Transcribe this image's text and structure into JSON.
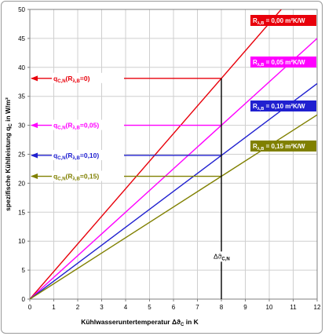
{
  "chart_data": {
    "type": "line",
    "xlabel": "Kühlwasseruntertemperatur  Δϑ",
    "xlabel_sub": "C",
    "xlabel_unit": " in K",
    "ylabel": "spezifische Kühlleistung q",
    "ylabel_sub": "C",
    "ylabel_unit": " in W/m²",
    "xlim": [
      0,
      12
    ],
    "ylim": [
      0,
      50
    ],
    "x_ticks": [
      "0",
      "1",
      "2",
      "3",
      "4",
      "5",
      "6",
      "7",
      "8",
      "9",
      "10",
      "11",
      "12"
    ],
    "y_ticks": [
      "0",
      "5",
      "10",
      "15",
      "20",
      "25",
      "30",
      "35",
      "40",
      "45",
      "50"
    ],
    "grid": true,
    "series": [
      {
        "name": "R",
        "sub": "λ,B",
        "val": " = 0,00 m²K/W",
        "color": "#e8000b",
        "slope": 4.7625,
        "x": [
          0,
          10.5
        ],
        "y": [
          0,
          50.0
        ]
      },
      {
        "name": "R",
        "sub": "λ,B",
        "val": " = 0,05 m²K/W",
        "color": "#ff00ff",
        "slope": 3.75,
        "x": [
          0,
          12
        ],
        "y": [
          0,
          45.0
        ]
      },
      {
        "name": "R",
        "sub": "λ,B",
        "val": " = 0,10 m²K/W",
        "color": "#2020d0",
        "slope": 3.1,
        "x": [
          0,
          12
        ],
        "y": [
          0,
          37.2
        ]
      },
      {
        "name": "R",
        "sub": "λ,B",
        "val": " = 0,15 m²K/W",
        "color": "#808000",
        "slope": 2.65,
        "x": [
          0,
          12
        ],
        "y": [
          0,
          31.8
        ]
      }
    ],
    "annotations": [
      {
        "label": "q",
        "sub": "C,N",
        "rest": "(R",
        "sub2": "λ,B",
        "tail": "=0)",
        "y": 38.1,
        "color": "#e8000b"
      },
      {
        "label": "q",
        "sub": "C,N",
        "rest": "(R",
        "sub2": "λ,B",
        "tail": "=0,05)",
        "y": 30.0,
        "color": "#ff00ff"
      },
      {
        "label": "q",
        "sub": "C,N",
        "rest": "(R",
        "sub2": "λ,B",
        "tail": "=0,10)",
        "y": 24.8,
        "color": "#2020d0"
      },
      {
        "label": "q",
        "sub": "C,N",
        "rest": "(R",
        "sub2": "λ,B",
        "tail": "=0,15)",
        "y": 21.2,
        "color": "#808000"
      }
    ],
    "vline": {
      "x": 8,
      "y": 38.1,
      "label": "Δϑ",
      "sub": "C,N",
      "label_y": 7
    }
  }
}
